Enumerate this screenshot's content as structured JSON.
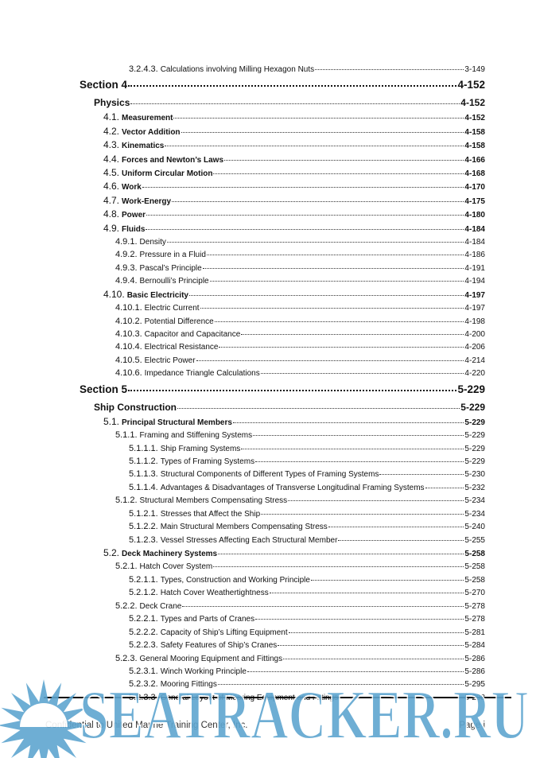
{
  "toc": [
    {
      "level": 4,
      "num": "3.2.4.3.",
      "label": "Calculations involving Milling Hexagon Nuts",
      "page": "3-149"
    },
    {
      "level": 0,
      "num": "",
      "label": "Section 4",
      "page": "4-152"
    },
    {
      "level": 1,
      "num": "",
      "label": "Physics",
      "page": "4-152"
    },
    {
      "level": 2,
      "num": "4.1.",
      "label": "Measurement",
      "page": "4-152"
    },
    {
      "level": 2,
      "num": "4.2.",
      "label": "Vector Addition",
      "page": "4-158"
    },
    {
      "level": 2,
      "num": "4.3.",
      "label": "Kinematics",
      "page": "4-158"
    },
    {
      "level": 2,
      "num": "4.4.",
      "label": "Forces and Newton’s Laws",
      "page": "4-166"
    },
    {
      "level": 2,
      "num": "4.5.",
      "label": "Uniform Circular Motion",
      "page": "4-168"
    },
    {
      "level": 2,
      "num": "4.6.",
      "label": "Work",
      "page": "4-170"
    },
    {
      "level": 2,
      "num": "4.7.",
      "label": "Work-Energy",
      "page": "4-175"
    },
    {
      "level": 2,
      "num": "4.8.",
      "label": "Power",
      "page": "4-180"
    },
    {
      "level": 2,
      "num": "4.9.",
      "label": "Fluids",
      "page": "4-184"
    },
    {
      "level": 3,
      "num": "4.9.1.",
      "label": "Density",
      "page": "4-184"
    },
    {
      "level": 3,
      "num": "4.9.2.",
      "label": "Pressure in a Fluid",
      "page": "4-186"
    },
    {
      "level": 3,
      "num": "4.9.3.",
      "label": "Pascal’s Principle",
      "page": "4-191"
    },
    {
      "level": 3,
      "num": "4.9.4.",
      "label": "Bernoulli’s Principle",
      "page": "4-194"
    },
    {
      "level": 2,
      "num": "4.10.",
      "label": "Basic Electricity",
      "page": "4-197"
    },
    {
      "level": 3,
      "num": "4.10.1.",
      "label": "Electric Current",
      "page": "4-197"
    },
    {
      "level": 3,
      "num": "4.10.2.",
      "label": "Potential Difference",
      "page": "4-198"
    },
    {
      "level": 3,
      "num": "4.10.3.",
      "label": "Capacitor and Capacitance",
      "page": "4-200"
    },
    {
      "level": 3,
      "num": "4.10.4.",
      "label": "Electrical Resistance",
      "page": "4-206"
    },
    {
      "level": 3,
      "num": "4.10.5.",
      "label": "Electric Power",
      "page": "4-214"
    },
    {
      "level": 3,
      "num": "4.10.6.",
      "label": "Impedance Triangle Calculations",
      "page": "4-220"
    },
    {
      "level": 0,
      "num": "",
      "label": "Section 5",
      "page": "5-229"
    },
    {
      "level": 1,
      "num": "",
      "label": "Ship Construction",
      "page": "5-229"
    },
    {
      "level": 2,
      "num": "5.1.",
      "label": "Principal Structural Members",
      "page": "5-229"
    },
    {
      "level": 3,
      "num": "5.1.1.",
      "label": "Framing and Stiffening Systems",
      "page": "5-229"
    },
    {
      "level": 4,
      "num": "5.1.1.1.",
      "label": "Ship Framing Systems",
      "page": "5-229"
    },
    {
      "level": 4,
      "num": "5.1.1.2.",
      "label": "Types of Framing Systems",
      "page": "5-229"
    },
    {
      "level": 4,
      "num": "5.1.1.3.",
      "label": "Structural Components of Different Types of Framing Systems",
      "page": "5-230"
    },
    {
      "level": 4,
      "num": "5.1.1.4.",
      "label": "Advantages & Disadvantages of Transverse Longitudinal Framing Systems",
      "page": "5-232"
    },
    {
      "level": 3,
      "num": "5.1.2.",
      "label": "Structural Members Compensating Stress",
      "page": "5-234"
    },
    {
      "level": 4,
      "num": "5.1.2.1.",
      "label": "Stresses that Affect the Ship",
      "page": "5-234"
    },
    {
      "level": 4,
      "num": "5.1.2.2.",
      "label": "Main Structural Members Compensating Stress",
      "page": "5-240"
    },
    {
      "level": 4,
      "num": "5.1.2.3.",
      "label": "Vessel Stresses Affecting Each Structural Member",
      "page": "5-255"
    },
    {
      "level": 2,
      "num": "5.2.",
      "label": "Deck Machinery Systems",
      "page": "5-258"
    },
    {
      "level": 3,
      "num": "5.2.1.",
      "label": "Hatch Cover System",
      "page": "5-258"
    },
    {
      "level": 4,
      "num": "5.2.1.1.",
      "label": "Types, Construction and Working Principle",
      "page": "5-258"
    },
    {
      "level": 4,
      "num": "5.2.1.2.",
      "label": "Hatch Cover Weathertightness",
      "page": "5-270"
    },
    {
      "level": 3,
      "num": "5.2.2.",
      "label": "Deck Crane",
      "page": "5-278"
    },
    {
      "level": 4,
      "num": "5.2.2.1.",
      "label": "Types and Parts of Cranes",
      "page": "5-278"
    },
    {
      "level": 4,
      "num": "5.2.2.2.",
      "label": "Capacity of Ship’s Lifting Equipment",
      "page": "5-281"
    },
    {
      "level": 4,
      "num": "5.2.2.3.",
      "label": "Safety Features of Ship’s Cranes",
      "page": "5-284"
    },
    {
      "level": 3,
      "num": "5.2.3.",
      "label": "General Mooring Equipment and Fittings",
      "page": "5-286"
    },
    {
      "level": 4,
      "num": "5.2.3.1.",
      "label": "Winch Working Principle",
      "page": "5-286"
    },
    {
      "level": 4,
      "num": "5.2.3.2.",
      "label": "Mooring Fittings",
      "page": "5-295"
    },
    {
      "level": 4,
      "num": "5.2.3.3.",
      "label": "General Layout of Mooring Equipment and Fittings",
      "page": "5-298"
    }
  ],
  "footer": {
    "left": "Confidential to United Marine Training Center, Inc.",
    "right": "Page i"
  },
  "watermark": {
    "text": "SEATRACKER.RU",
    "color": "#5fa6d0",
    "icon": "sun-icon"
  }
}
